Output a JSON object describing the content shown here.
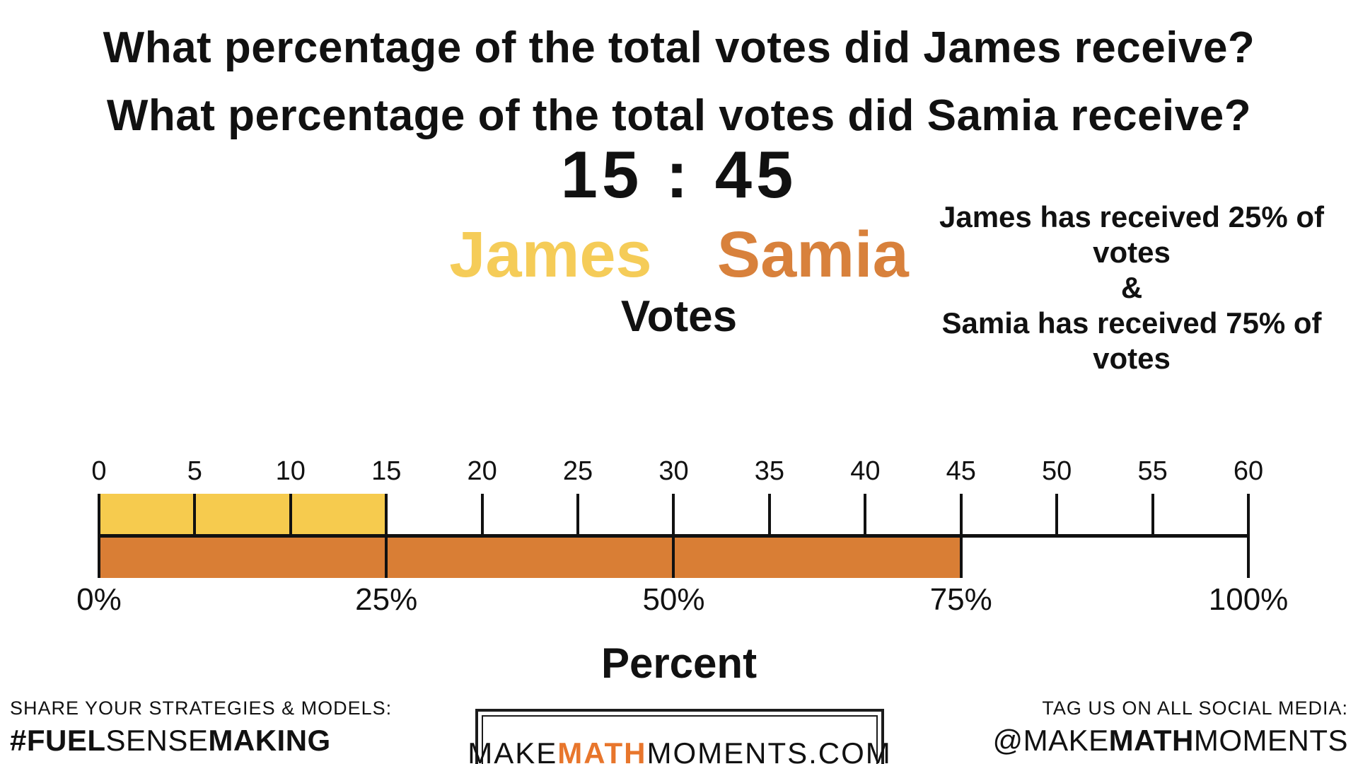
{
  "title": {
    "line1": "What percentage of the total votes did James receive?",
    "line2": "What percentage of the total votes did Samia receive?"
  },
  "ratio_display": "15 : 45",
  "names": {
    "james": "James",
    "samia": "Samia"
  },
  "votes_axis_title": "Votes",
  "answer": {
    "line1": "James has received 25% of",
    "line2": "votes",
    "line3": "&",
    "line4": "Samia has received 75% of",
    "line5": "votes"
  },
  "chart_data": {
    "type": "bar",
    "subtype": "double-number-line",
    "title": "15 : 45",
    "top_axis": {
      "label": "Votes",
      "min": 0,
      "max": 60,
      "tick_step": 5,
      "tick_values": [
        0,
        5,
        10,
        15,
        20,
        25,
        30,
        35,
        40,
        45,
        50,
        55,
        60
      ]
    },
    "bottom_axis": {
      "label": "Percent",
      "ticks": [
        {
          "v": 0,
          "label": "0%"
        },
        {
          "v": 15,
          "label": "25%"
        },
        {
          "v": 30,
          "label": "50%"
        },
        {
          "v": 45,
          "label": "75%"
        },
        {
          "v": 60,
          "label": "100%"
        }
      ]
    },
    "series": [
      {
        "name": "James",
        "votes": 15,
        "percent": 25,
        "bar_color": "#F6CB4E",
        "label_color": "#F5CC58",
        "dividers_votes": [
          0,
          5,
          10,
          15
        ]
      },
      {
        "name": "Samia",
        "votes": 45,
        "percent": 75,
        "bar_color": "#D97E35",
        "label_color": "#D8813C",
        "dividers_votes": [
          0,
          15,
          30,
          45
        ]
      }
    ],
    "grid": false,
    "legend_position": "above-chart"
  },
  "footer": {
    "left": {
      "line1": "SHARE YOUR STRATEGIES & MODELS:",
      "tag": {
        "p1": "#FUEL",
        "p2": "SENSE",
        "p3": "MAKING"
      }
    },
    "center": {
      "p1": "MAKE",
      "p2": "MATH",
      "p3": "MOMENTS",
      "p4": ".COM",
      "accent_color": "#E8762C"
    },
    "right": {
      "line1": "TAG US ON ALL SOCIAL MEDIA:",
      "tag": {
        "p1": "@MAKE",
        "p2": "MATH",
        "p3": "MOMENTS"
      }
    }
  }
}
